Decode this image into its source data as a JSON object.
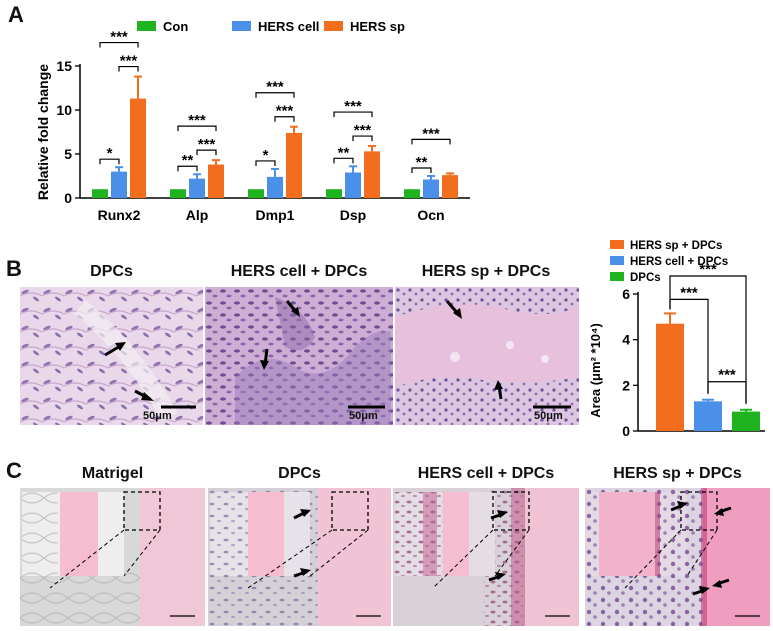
{
  "panels": {
    "a": {
      "letter": "A"
    },
    "b": {
      "letter": "B"
    },
    "c": {
      "letter": "C"
    }
  },
  "colors": {
    "con": "#1fb41f",
    "hers_cell": "#4a8fe8",
    "hers_sp": "#f26d1e"
  },
  "chart_data": [
    {
      "type": "bar",
      "panel": "A",
      "ylabel": "Relative fold change",
      "ylim": [
        0,
        15
      ],
      "yticks": [
        0,
        5,
        10,
        15
      ],
      "categories": [
        "Runx2",
        "Alp",
        "Dmp1",
        "Dsp",
        "Ocn"
      ],
      "legend": {
        "placement": "top",
        "entries": [
          "Con",
          "HERS cell",
          "HERS sp"
        ]
      },
      "series": [
        {
          "name": "Con",
          "color": "#1fb41f",
          "values": [
            1,
            1,
            1,
            1,
            1
          ],
          "errors": [
            0,
            0,
            0,
            0,
            0
          ]
        },
        {
          "name": "HERS cell",
          "color": "#4a8fe8",
          "values": [
            3.0,
            2.2,
            2.4,
            2.9,
            2.1
          ],
          "errors": [
            0.5,
            0.5,
            0.9,
            0.7,
            0.4
          ]
        },
        {
          "name": "HERS sp",
          "color": "#f26d1e",
          "values": [
            11.3,
            3.8,
            7.4,
            5.3,
            2.6
          ],
          "errors": [
            2.5,
            0.5,
            0.7,
            0.6,
            0.2
          ]
        }
      ],
      "significance": [
        {
          "category": 0,
          "pair": [
            0,
            1
          ],
          "label": "*"
        },
        {
          "category": 0,
          "pair": [
            0,
            2
          ],
          "label": "***"
        },
        {
          "category": 0,
          "pair": [
            1,
            2
          ],
          "label": "***"
        },
        {
          "category": 1,
          "pair": [
            0,
            1
          ],
          "label": "**"
        },
        {
          "category": 1,
          "pair": [
            0,
            2
          ],
          "label": "***"
        },
        {
          "category": 1,
          "pair": [
            1,
            2
          ],
          "label": "***"
        },
        {
          "category": 2,
          "pair": [
            0,
            1
          ],
          "label": "*"
        },
        {
          "category": 2,
          "pair": [
            0,
            2
          ],
          "label": "***"
        },
        {
          "category": 2,
          "pair": [
            1,
            2
          ],
          "label": "***"
        },
        {
          "category": 3,
          "pair": [
            0,
            1
          ],
          "label": "**"
        },
        {
          "category": 3,
          "pair": [
            0,
            2
          ],
          "label": "***"
        },
        {
          "category": 3,
          "pair": [
            1,
            2
          ],
          "label": "***"
        },
        {
          "category": 4,
          "pair": [
            0,
            1
          ],
          "label": "**"
        },
        {
          "category": 4,
          "pair": [
            0,
            2
          ],
          "label": "***"
        }
      ]
    },
    {
      "type": "bar",
      "panel": "B",
      "ylabel": "Area (μm² *10⁴)",
      "ylim": [
        0,
        6
      ],
      "yticks": [
        0,
        2,
        4,
        6
      ],
      "categories": [
        "HERS sp + DPCs",
        "HERS cell + DPCs",
        "DPCs"
      ],
      "legend": {
        "placement": "top",
        "entries": [
          "HERS sp + DPCs",
          "HERS cell + DPCs",
          "DPCs"
        ]
      },
      "series": [
        {
          "name": "Area",
          "values": [
            4.7,
            1.3,
            0.85
          ],
          "errors": [
            0.45,
            0.07,
            0.08
          ],
          "colors": [
            "#f26d1e",
            "#4a8fe8",
            "#1fb41f"
          ]
        }
      ],
      "significance": [
        {
          "pair": [
            0,
            1
          ],
          "label": "***"
        },
        {
          "pair": [
            0,
            2
          ],
          "label": "***"
        },
        {
          "pair": [
            1,
            2
          ],
          "label": "***"
        }
      ]
    }
  ],
  "panel_b_images": [
    {
      "title": "DPCs",
      "scale": "50μm"
    },
    {
      "title": "HERS cell + DPCs",
      "scale": "50μm"
    },
    {
      "title": "HERS sp + DPCs",
      "scale": "50μm"
    }
  ],
  "panel_c_images": [
    {
      "title": "Matrigel"
    },
    {
      "title": "DPCs"
    },
    {
      "title": "HERS cell + DPCs"
    },
    {
      "title": "HERS sp + DPCs"
    }
  ]
}
